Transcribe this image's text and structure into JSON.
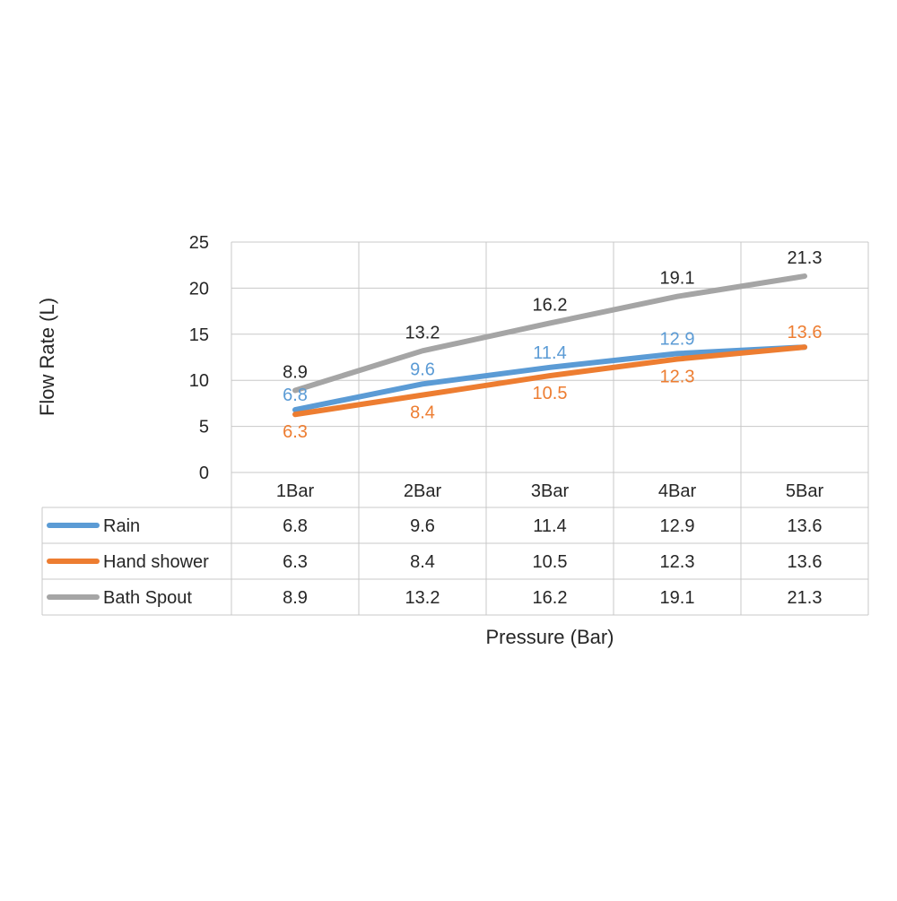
{
  "chart_data": {
    "type": "line",
    "xlabel": "Pressure (Bar)",
    "ylabel": "Flow Rate (L)",
    "ylim": [
      0,
      25
    ],
    "yticks": [
      0,
      5,
      10,
      15,
      20,
      25
    ],
    "grid": true,
    "data_table": true,
    "categories": [
      "1Bar",
      "2Bar",
      "3Bar",
      "4Bar",
      "5Bar"
    ],
    "series": [
      {
        "name": "Rain",
        "color": "#5b9bd5",
        "values": [
          6.8,
          9.6,
          11.4,
          12.9,
          13.6
        ]
      },
      {
        "name": "Hand shower",
        "color": "#ed7d31",
        "values": [
          6.3,
          8.4,
          10.5,
          12.3,
          13.6
        ]
      },
      {
        "name": "Bath Spout",
        "color": "#a5a5a5",
        "values": [
          8.9,
          13.2,
          16.2,
          19.1,
          21.3
        ]
      }
    ]
  }
}
